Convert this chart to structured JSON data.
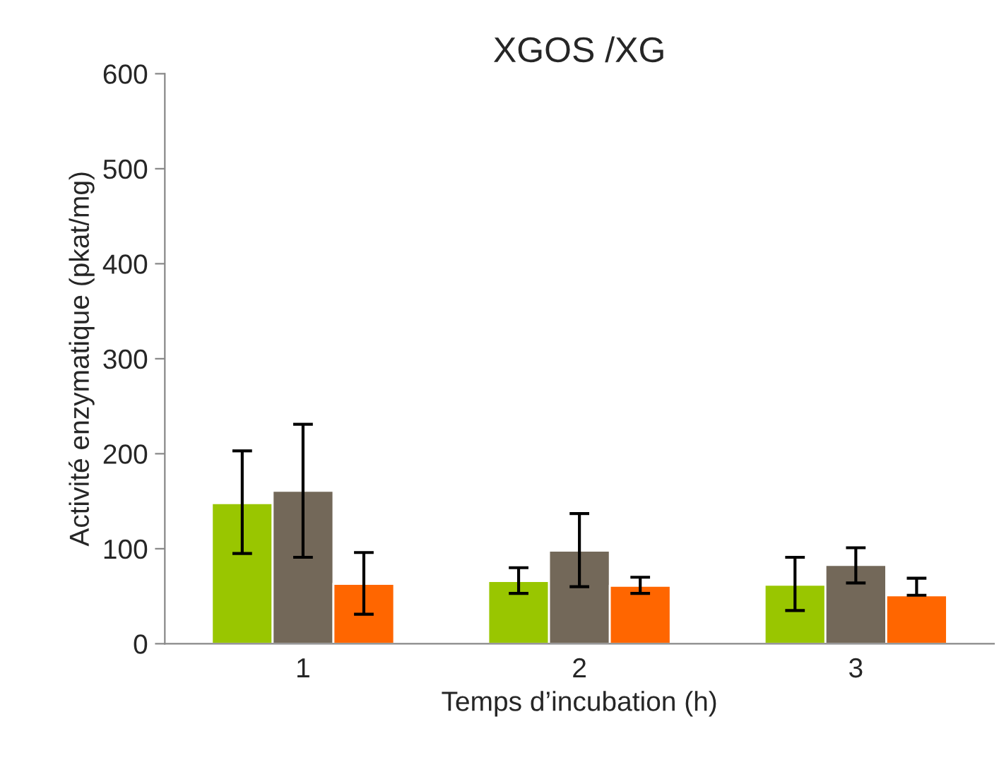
{
  "chart_data": {
    "type": "bar",
    "title": "XGOS /XG",
    "xlabel": "Temps d’incubation (h)",
    "ylabel": "Activité enzymatique (pkat/mg)",
    "categories": [
      "1",
      "2",
      "3"
    ],
    "series": [
      {
        "color": "#99c600",
        "values": [
          148,
          66,
          62
        ],
        "errors": [
          [
            95,
            203
          ],
          [
            53,
            80
          ],
          [
            35,
            91
          ]
        ]
      },
      {
        "color": "#736859",
        "values": [
          161,
          98,
          83
        ],
        "errors": [
          [
            91,
            231
          ],
          [
            60,
            137
          ],
          [
            64,
            101
          ]
        ]
      },
      {
        "color": "#ff6600",
        "values": [
          63,
          61,
          51
        ],
        "errors": [
          [
            31,
            96
          ],
          [
            53,
            70
          ],
          [
            51,
            69
          ]
        ]
      }
    ],
    "ylim": [
      0,
      600
    ],
    "yticks": [
      0,
      100,
      200,
      300,
      400,
      500,
      600
    ],
    "grid": false
  }
}
